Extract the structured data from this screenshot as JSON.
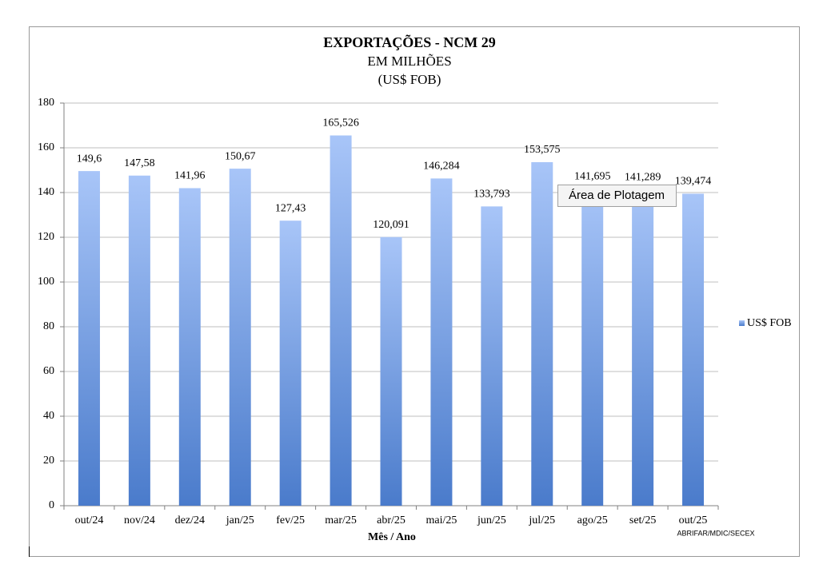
{
  "chart_data": {
    "type": "bar",
    "title": "EXPORTAÇÕES - NCM 29",
    "subtitle": "EM MILHÕES",
    "unit": "(US$ FOB)",
    "x_label": "Mês / Ano",
    "source": "ABRIFAR/MDIC/SECEX",
    "tooltip": "Área de Plotagem",
    "categories": [
      "out/24",
      "nov/24",
      "dez/24",
      "jan/25",
      "fev/25",
      "mar/25",
      "abr/25",
      "mai/25",
      "jun/25",
      "jul/25",
      "ago/25",
      "set/25",
      "out/25"
    ],
    "series": [
      {
        "name": "US$ FOB",
        "color": "#4a7bcb",
        "values": [
          149.6,
          147.58,
          141.96,
          150.67,
          127.43,
          165.526,
          120.091,
          146.284,
          133.793,
          153.575,
          141.695,
          141.289,
          139.474
        ],
        "value_labels": [
          "149,6",
          "147,58",
          "141,96",
          "150,67",
          "127,43",
          "165,526",
          "120,091",
          "146,284",
          "133,793",
          "153,575",
          "141,695",
          "141,289",
          "139,474"
        ]
      }
    ],
    "ylim": [
      0,
      180
    ],
    "yticks": [
      0,
      20,
      40,
      60,
      80,
      100,
      120,
      140,
      160,
      180
    ],
    "grid": true,
    "legend": "right"
  }
}
